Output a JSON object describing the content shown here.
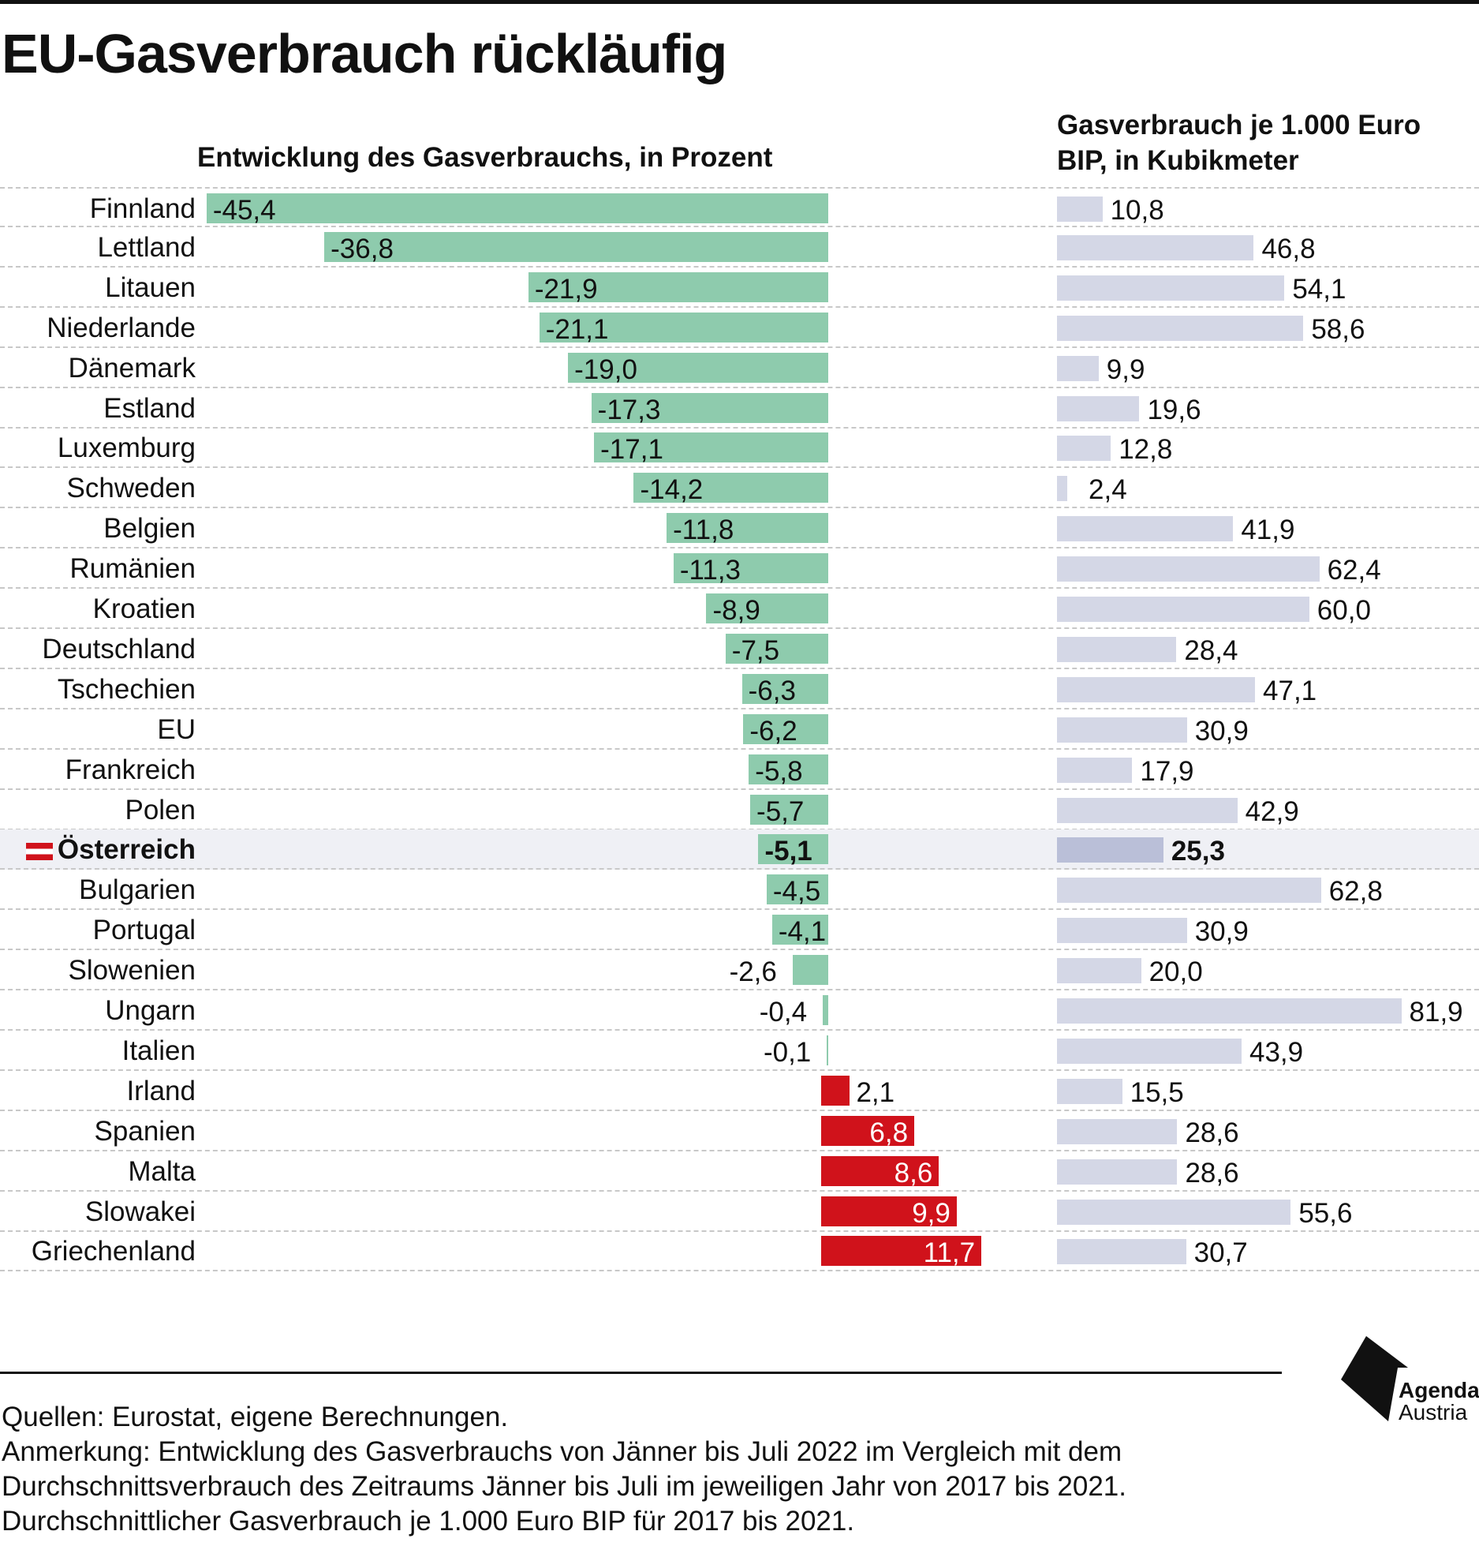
{
  "title": "EU-Gasverbrauch rückläufig",
  "chart_data": {
    "type": "bar",
    "categories": [
      "Finnland",
      "Lettland",
      "Litauen",
      "Niederlande",
      "Dänemark",
      "Estland",
      "Luxemburg",
      "Schweden",
      "Belgien",
      "Rumänien",
      "Kroatien",
      "Deutschland",
      "Tschechien",
      "EU",
      "Frankreich",
      "Polen",
      "Österreich",
      "Bulgarien",
      "Portugal",
      "Slowenien",
      "Ungarn",
      "Italien",
      "Irland",
      "Spanien",
      "Malta",
      "Slowakei",
      "Griechenland"
    ],
    "highlight": "Österreich",
    "series": [
      {
        "name": "Entwicklung des Gasverbrauchs, in Prozent",
        "values": [
          -45.4,
          -36.8,
          -21.9,
          -21.1,
          -19.0,
          -17.3,
          -17.1,
          -14.2,
          -11.8,
          -11.3,
          -8.9,
          -7.5,
          -6.3,
          -6.2,
          -5.8,
          -5.7,
          -5.1,
          -4.5,
          -4.1,
          -2.6,
          -0.4,
          -0.1,
          2.1,
          6.8,
          8.6,
          9.9,
          11.7
        ],
        "labels": [
          "-45,4",
          "-36,8",
          "-21,9",
          "-21,1",
          "-19,0",
          "-17,3",
          "-17,1",
          "-14,2",
          "-11,8",
          "-11,3",
          "-8,9",
          "-7,5",
          "-6,3",
          "-6,2",
          "-5,8",
          "-5,7",
          "-5,1",
          "-4,5",
          "-4,1",
          "-2,6",
          "-0,4",
          "-0,1",
          "2,1",
          "6,8",
          "8,6",
          "9,9",
          "11,7"
        ],
        "colors": {
          "negative": "#8ecbad",
          "positive": "#d0121b"
        }
      },
      {
        "name": "Gasverbrauch je 1.000 Euro BIP, in Kubikmeter",
        "values": [
          10.8,
          46.8,
          54.1,
          58.6,
          9.9,
          19.6,
          12.8,
          2.4,
          41.9,
          62.4,
          60.0,
          28.4,
          47.1,
          30.9,
          17.9,
          42.9,
          25.3,
          62.8,
          30.9,
          20.0,
          81.9,
          43.9,
          15.5,
          28.6,
          28.6,
          55.6,
          30.7
        ],
        "labels": [
          "10,8",
          "46,8",
          "54,1",
          "58,6",
          "9,9",
          "19,6",
          "12,8",
          "2,4",
          "41,9",
          "62,4",
          "60,0",
          "28,4",
          "47,1",
          "30,9",
          "17,9",
          "42,9",
          "25,3",
          "62,8",
          "30,9",
          "20,0",
          "81,9",
          "43,9",
          "15,5",
          "28,6",
          "28,6",
          "55,6",
          "30,7"
        ],
        "colors": {
          "default": "#d4d7e6",
          "highlight": "#babfd8"
        }
      }
    ]
  },
  "footer": {
    "sources": "Quellen: Eurostat, eigene Berechnungen.",
    "note1": "Anmerkung: Entwicklung des Gasverbrauchs von Jänner bis Juli 2022 im Vergleich mit dem",
    "note2": "Durchschnittsverbrauch des Zeitraums Jänner bis Juli im jeweiligen Jahr von 2017 bis 2021.",
    "note3": "Durchschnittlicher Gasverbrauch je 1.000 Euro BIP für 2017 bis 2021."
  },
  "logo": {
    "line1": "Agenda",
    "line2": "Austria"
  }
}
